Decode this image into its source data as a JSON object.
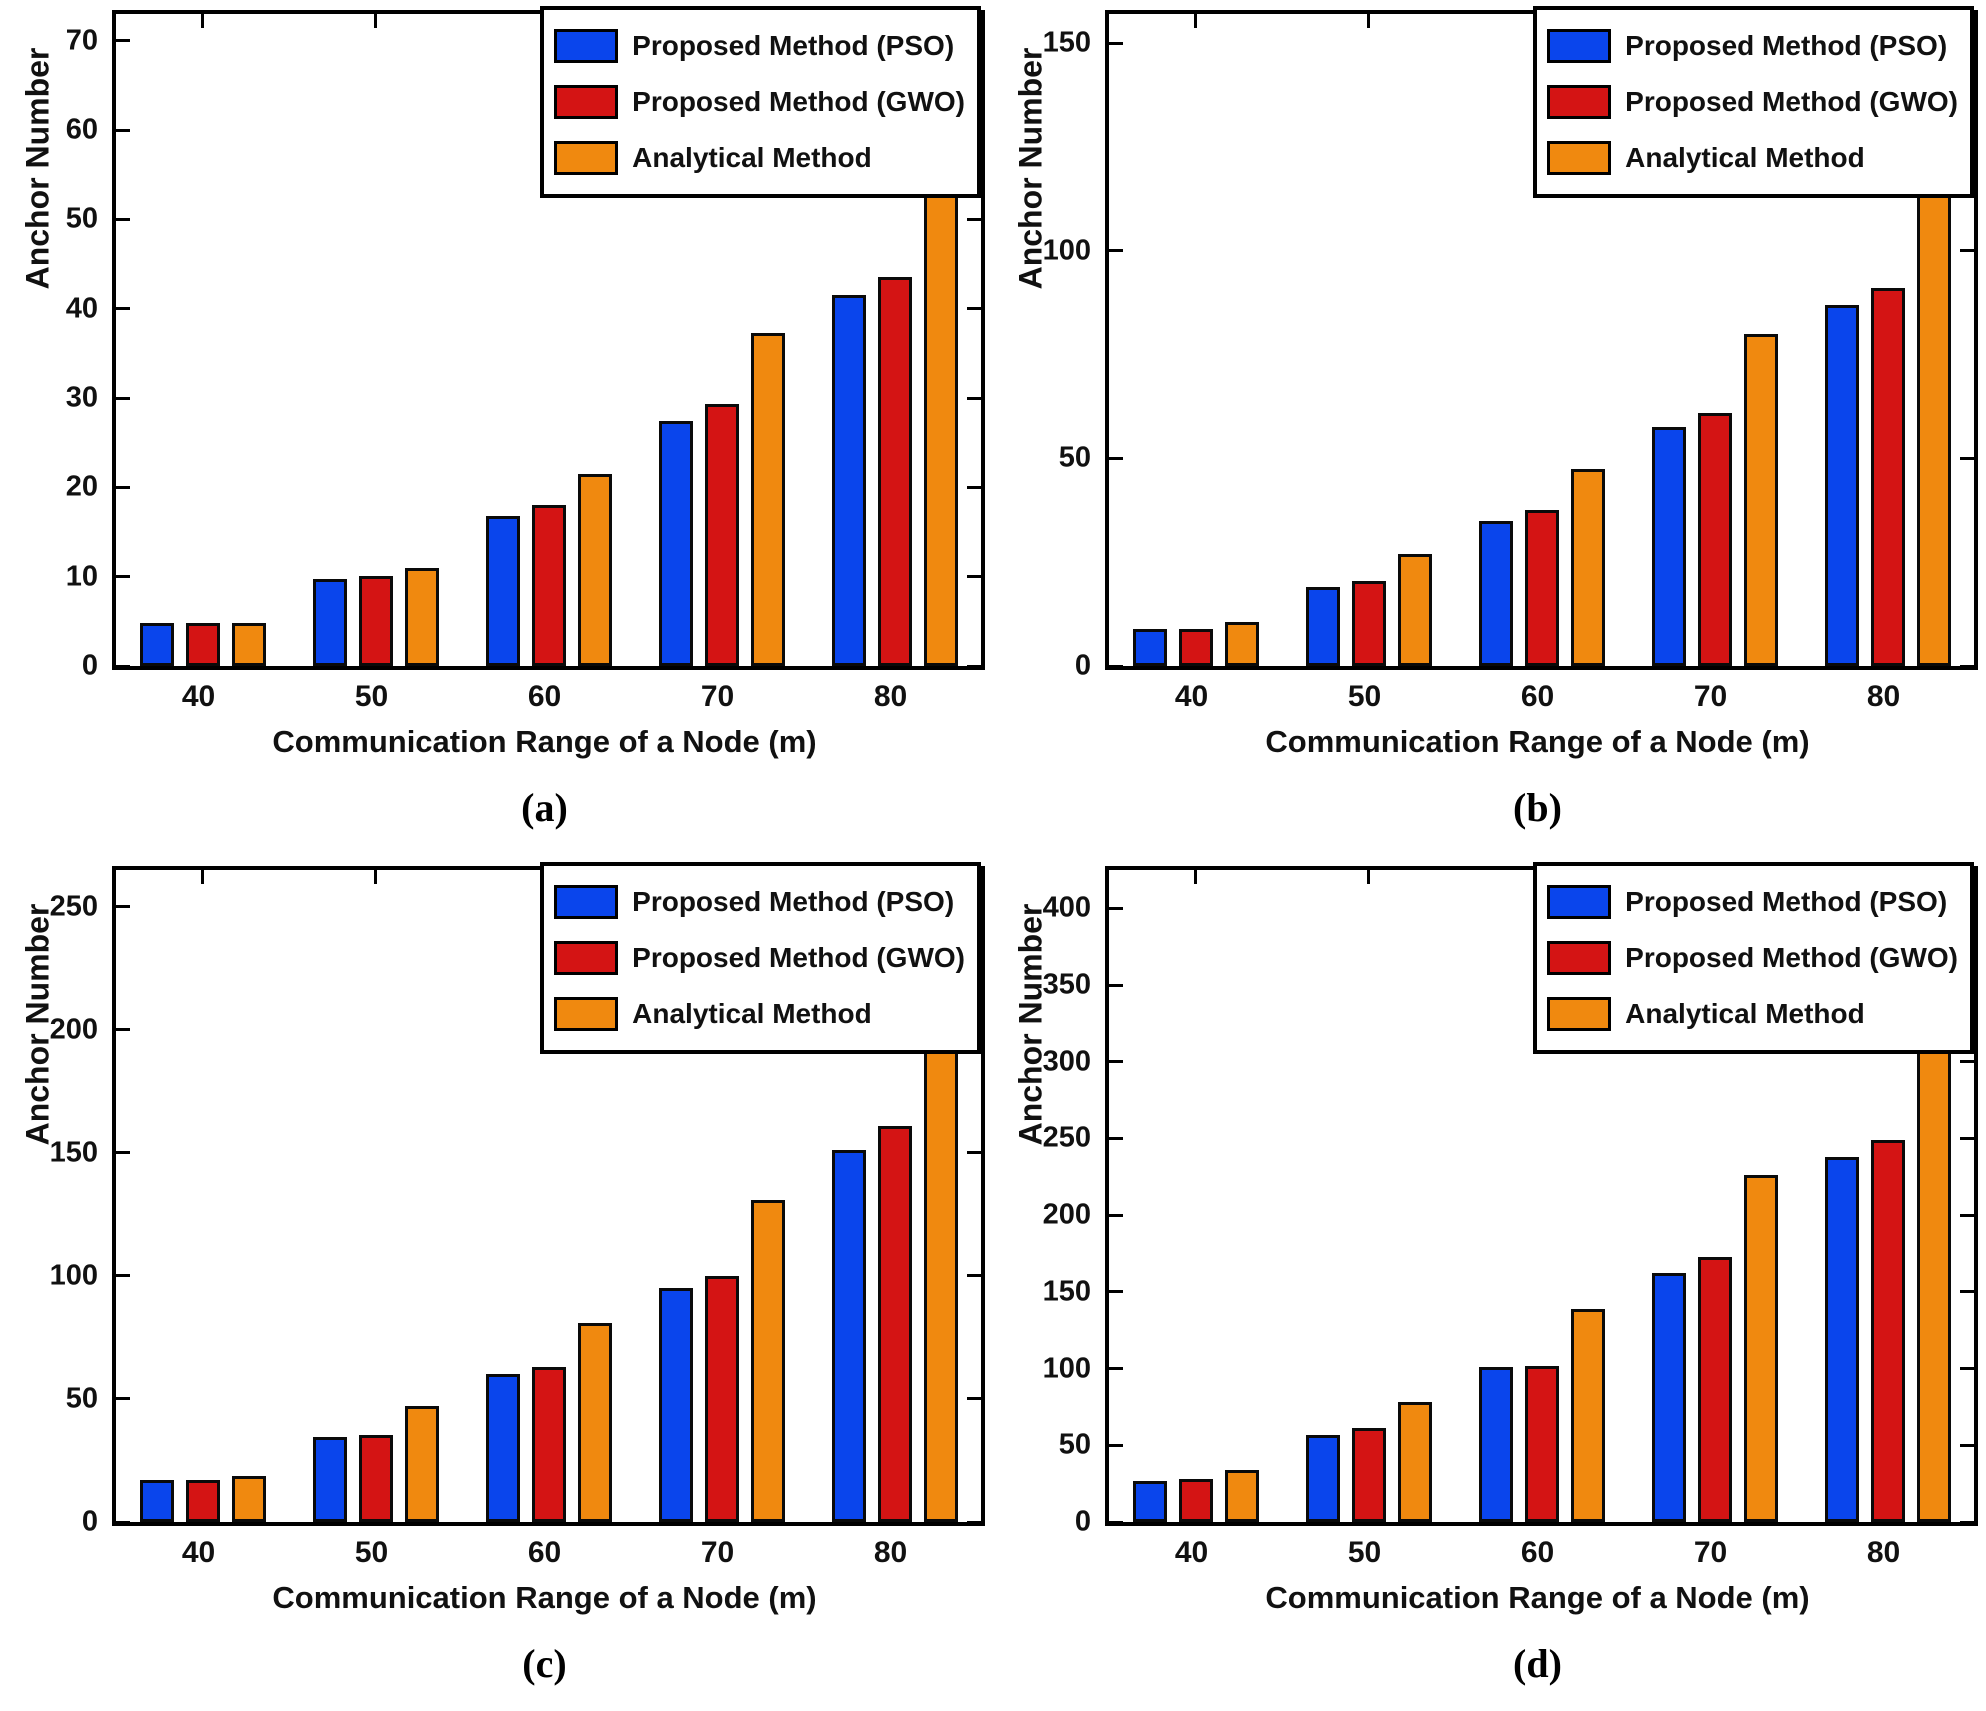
{
  "figure": {
    "ylabel": "Anchor Number",
    "xlabel": "Communication Range of a Node (m)",
    "legend": [
      "Proposed Method (PSO)",
      "Proposed Method (GWO)",
      "Analytical Method"
    ],
    "series_colors": [
      "#0a45ec",
      "#d41414",
      "#f0890f"
    ],
    "axis_color": "#000000",
    "background_color": "#ffffff"
  },
  "chart_data": [
    {
      "id": "a",
      "label": "(a)",
      "type": "bar",
      "title": "",
      "xlabel": "Communication Range of a Node (m)",
      "ylabel": "Anchor Number",
      "categories": [
        "40",
        "50",
        "60",
        "70",
        "80"
      ],
      "series": [
        {
          "name": "Proposed Method (PSO)",
          "values": [
            4.8,
            9.7,
            16.8,
            27.4,
            41.5
          ]
        },
        {
          "name": "Proposed Method (GWO)",
          "values": [
            4.8,
            10.1,
            18.0,
            29.3,
            43.6
          ]
        },
        {
          "name": "Analytical Method",
          "values": [
            4.8,
            11.0,
            21.5,
            37.3,
            57.0
          ]
        }
      ],
      "yticks": [
        0,
        10,
        20,
        30,
        40,
        50,
        60,
        70
      ],
      "ylim": [
        0,
        73
      ],
      "grid": false,
      "legend_position": "top-right"
    },
    {
      "id": "b",
      "label": "(b)",
      "type": "bar",
      "title": "",
      "xlabel": "Communication Range of a Node (m)",
      "ylabel": "Anchor Number",
      "categories": [
        "40",
        "50",
        "60",
        "70",
        "80"
      ],
      "series": [
        {
          "name": "Proposed Method (PSO)",
          "values": [
            9,
            19,
            35,
            57.5,
            87
          ]
        },
        {
          "name": "Proposed Method (GWO)",
          "values": [
            9,
            20.5,
            37.5,
            61,
            91
          ]
        },
        {
          "name": "Analytical Method",
          "values": [
            10.5,
            27,
            47.5,
            80,
            121
          ]
        }
      ],
      "yticks": [
        0,
        50,
        100,
        150
      ],
      "ylim": [
        0,
        157
      ],
      "grid": false,
      "legend_position": "top-right"
    },
    {
      "id": "c",
      "label": "(c)",
      "type": "bar",
      "title": "",
      "xlabel": "Communication Range of a Node (m)",
      "ylabel": "Anchor Number",
      "categories": [
        "40",
        "50",
        "60",
        "70",
        "80"
      ],
      "series": [
        {
          "name": "Proposed Method (PSO)",
          "values": [
            17,
            34.5,
            60,
            95,
            151
          ]
        },
        {
          "name": "Proposed Method (GWO)",
          "values": [
            17,
            35.5,
            63,
            100,
            161
          ]
        },
        {
          "name": "Analytical Method",
          "values": [
            18.5,
            47,
            81,
            131,
            204
          ]
        }
      ],
      "yticks": [
        0,
        50,
        100,
        150,
        200,
        250
      ],
      "ylim": [
        0,
        265
      ],
      "grid": false,
      "legend_position": "top-right"
    },
    {
      "id": "d",
      "label": "(d)",
      "type": "bar",
      "title": "",
      "xlabel": "Communication Range of a Node (m)",
      "ylabel": "Anchor Number",
      "categories": [
        "40",
        "50",
        "60",
        "70",
        "80"
      ],
      "series": [
        {
          "name": "Proposed Method (PSO)",
          "values": [
            27,
            57,
            101,
            162,
            238
          ]
        },
        {
          "name": "Proposed Method (GWO)",
          "values": [
            28,
            61,
            102,
            173,
            249
          ]
        },
        {
          "name": "Analytical Method",
          "values": [
            34,
            78,
            139,
            226,
            331
          ]
        }
      ],
      "yticks": [
        0,
        50,
        100,
        150,
        200,
        250,
        300,
        350,
        400
      ],
      "ylim": [
        0,
        425
      ],
      "grid": false,
      "legend_position": "top-right"
    }
  ]
}
